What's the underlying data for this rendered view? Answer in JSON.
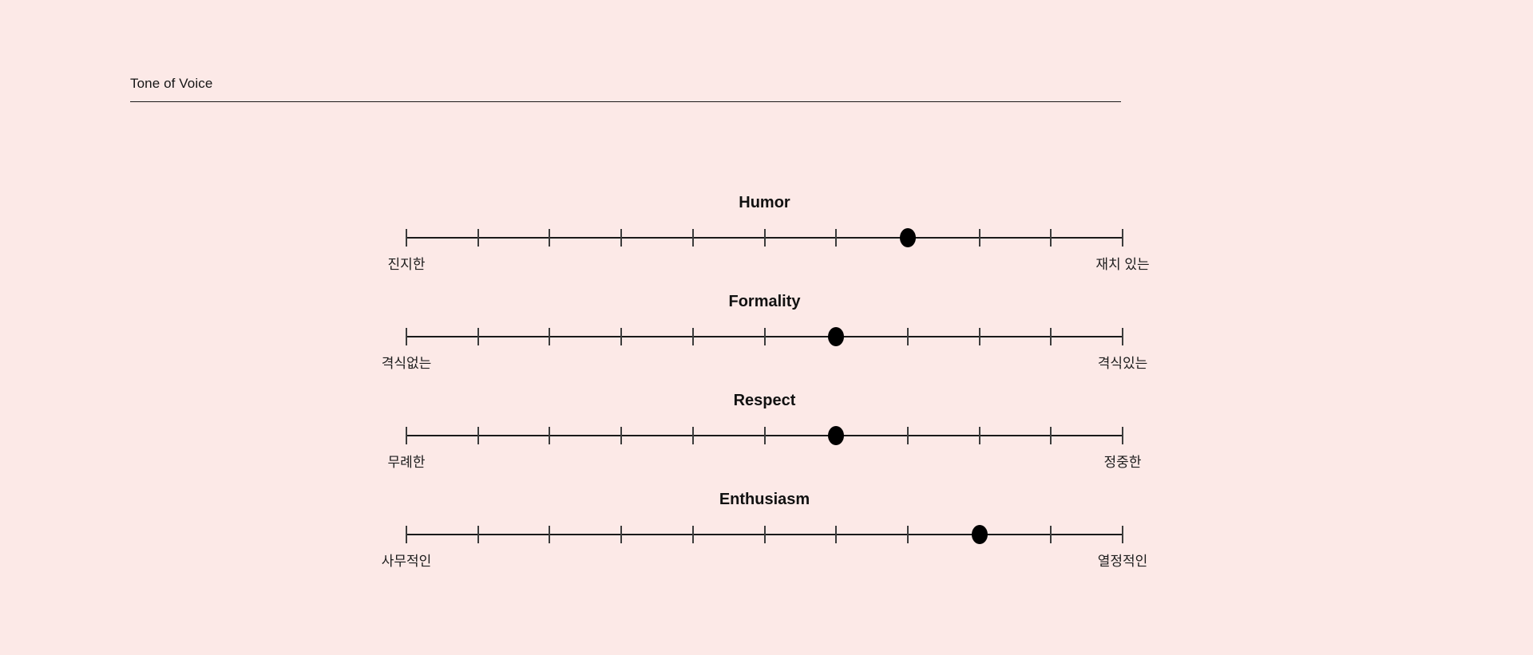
{
  "header": {
    "title": "Tone of Voice"
  },
  "sliders": [
    {
      "name": "Humor",
      "left_label": "진지한",
      "right_label": "재치 있는",
      "value": 7,
      "max": 10,
      "tick_count": 11
    },
    {
      "name": "Formality",
      "left_label": "격식없는",
      "right_label": "격식있는",
      "value": 6,
      "max": 10,
      "tick_count": 11
    },
    {
      "name": "Respect",
      "left_label": "무례한",
      "right_label": "정중한",
      "value": 6,
      "max": 10,
      "tick_count": 11
    },
    {
      "name": "Enthusiasm",
      "left_label": "사무적인",
      "right_label": "열정적인",
      "value": 8,
      "max": 10,
      "tick_count": 11
    }
  ],
  "colors": {
    "background": "#FCE9E7",
    "line": "#1A1A1A",
    "dot": "#000000",
    "text": "#151515"
  }
}
